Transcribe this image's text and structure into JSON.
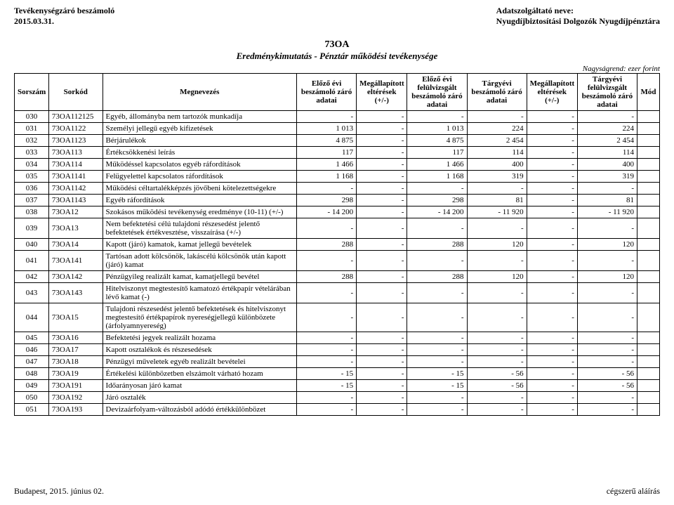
{
  "header": {
    "left1": "Tevékenységzáró beszámoló",
    "left2": "2015.03.31.",
    "right1": "Adatszolgáltató neve:",
    "right2": "Nyugdíjbiztosítási Dolgozók Nyugdíjpénztára"
  },
  "title": {
    "code": "73OA",
    "sub": "Eredménykimutatás - Pénztár működési tevékenysége"
  },
  "scale": "Nagyságrend: ezer forint",
  "columns": [
    "Sorszám",
    "Sorkód",
    "Megnevezés",
    "Előző évi beszámoló záró adatai",
    "Megállapított eltérések (+/-)",
    "Előző évi felülvizsgált beszámoló záró adatai",
    "Tárgyévi beszámoló záró adatai",
    "Megállapított eltérések (+/-)",
    "Tárgyévi felülvizsgált beszámoló záró adatai",
    "Mód"
  ],
  "rows": [
    {
      "sorszam": "030",
      "sorkod": "73OA112125",
      "meg": "Egyéb, állományba nem tartozók munkadíja",
      "v": [
        "-",
        "-",
        "-",
        "-",
        "-",
        "-"
      ],
      "mod": ""
    },
    {
      "sorszam": "031",
      "sorkod": "73OA1122",
      "meg": "Személyi jellegű egyéb kifizetések",
      "v": [
        "1 013",
        "-",
        "1 013",
        "224",
        "-",
        "224"
      ],
      "mod": ""
    },
    {
      "sorszam": "032",
      "sorkod": "73OA1123",
      "meg": "Bérjárulékok",
      "v": [
        "4 875",
        "-",
        "4 875",
        "2 454",
        "-",
        "2 454"
      ],
      "mod": ""
    },
    {
      "sorszam": "033",
      "sorkod": "73OA113",
      "meg": "Értékcsökkenési leírás",
      "v": [
        "117",
        "-",
        "117",
        "114",
        "-",
        "114"
      ],
      "mod": ""
    },
    {
      "sorszam": "034",
      "sorkod": "73OA114",
      "meg": "Működéssel kapcsolatos egyéb ráfordítások",
      "v": [
        "1 466",
        "-",
        "1 466",
        "400",
        "-",
        "400"
      ],
      "mod": ""
    },
    {
      "sorszam": "035",
      "sorkod": "73OA1141",
      "meg": "Felügyelettel kapcsolatos ráfordítások",
      "v": [
        "1 168",
        "-",
        "1 168",
        "319",
        "-",
        "319"
      ],
      "mod": ""
    },
    {
      "sorszam": "036",
      "sorkod": "73OA1142",
      "meg": "Működési céltartalékképzés jövőbeni kötelezettségekre",
      "v": [
        "-",
        "-",
        "-",
        "-",
        "-",
        "-"
      ],
      "mod": ""
    },
    {
      "sorszam": "037",
      "sorkod": "73OA1143",
      "meg": "Egyéb ráfordítások",
      "v": [
        "298",
        "-",
        "298",
        "81",
        "-",
        "81"
      ],
      "mod": ""
    },
    {
      "sorszam": "038",
      "sorkod": "73OA12",
      "meg": "Szokásos működési tevékenység eredménye (10-11) (+/-)",
      "v": [
        "-          14 200",
        "-",
        "-          14 200",
        "-          11 920",
        "-",
        "-          11 920"
      ],
      "mod": ""
    },
    {
      "sorszam": "039",
      "sorkod": "73OA13",
      "meg": "Nem befektetési célú tulajdoni részesedést jelentő befektetések értékvesztése, visszaírása (+/-)",
      "v": [
        "-",
        "-",
        "-",
        "-",
        "-",
        "-"
      ],
      "mod": ""
    },
    {
      "sorszam": "040",
      "sorkod": "73OA14",
      "meg": "Kapott (járó) kamatok, kamat jellegű bevételek",
      "v": [
        "288",
        "-",
        "288",
        "120",
        "-",
        "120"
      ],
      "mod": ""
    },
    {
      "sorszam": "041",
      "sorkod": "73OA141",
      "meg": "Tartósan adott kölcsönök, lakáscélú kölcsönök után kapott (járó) kamat",
      "v": [
        "-",
        "-",
        "-",
        "-",
        "-",
        "-"
      ],
      "mod": ""
    },
    {
      "sorszam": "042",
      "sorkod": "73OA142",
      "meg": "Pénzügyileg realizált kamat, kamatjellegű bevétel",
      "v": [
        "288",
        "-",
        "288",
        "120",
        "-",
        "120"
      ],
      "mod": ""
    },
    {
      "sorszam": "043",
      "sorkod": "73OA143",
      "meg": "Hitelviszonyt megtestesítő kamatozó értékpapír vételárában lévő kamat (-)",
      "v": [
        "-",
        "-",
        "-",
        "-",
        "-",
        "-"
      ],
      "mod": ""
    },
    {
      "sorszam": "044",
      "sorkod": "73OA15",
      "meg": "Tulajdoni részesedést jelentő befektetések és hitelviszonyt megtestesítő értékpapírok nyereségjellegű különbözete (árfolyamnyereség)",
      "v": [
        "-",
        "-",
        "-",
        "-",
        "-",
        "-"
      ],
      "mod": ""
    },
    {
      "sorszam": "045",
      "sorkod": "73OA16",
      "meg": "Befektetési jegyek realizált hozama",
      "v": [
        "-",
        "-",
        "-",
        "-",
        "-",
        "-"
      ],
      "mod": ""
    },
    {
      "sorszam": "046",
      "sorkod": "73OA17",
      "meg": "Kapott osztalékok és részesedések",
      "v": [
        "-",
        "-",
        "-",
        "-",
        "-",
        "-"
      ],
      "mod": ""
    },
    {
      "sorszam": "047",
      "sorkod": "73OA18",
      "meg": "Pénzügyi műveletek egyéb realizált bevételei",
      "v": [
        "-",
        "-",
        "-",
        "-",
        "-",
        "-"
      ],
      "mod": ""
    },
    {
      "sorszam": "048",
      "sorkod": "73OA19",
      "meg": "Értékelési különbözetben elszámolt várható hozam",
      "v": [
        "-                 15",
        "-",
        "-                 15",
        "-                 56",
        "-",
        "-                 56"
      ],
      "mod": ""
    },
    {
      "sorszam": "049",
      "sorkod": "73OA191",
      "meg": "Időarányosan járó kamat",
      "v": [
        "-                 15",
        "-",
        "-                 15",
        "-                 56",
        "-",
        "-                 56"
      ],
      "mod": ""
    },
    {
      "sorszam": "050",
      "sorkod": "73OA192",
      "meg": "Járó osztalék",
      "v": [
        "-",
        "-",
        "-",
        "-",
        "-",
        "-"
      ],
      "mod": ""
    },
    {
      "sorszam": "051",
      "sorkod": "73OA193",
      "meg": "Devizaárfolyam-változásból adódó értékkülönbözet",
      "v": [
        "-",
        "-",
        "-",
        "-",
        "-",
        "-"
      ],
      "mod": ""
    }
  ],
  "footer": {
    "left": "Budapest, 2015. június 02.",
    "right": "cégszerű aláírás"
  }
}
